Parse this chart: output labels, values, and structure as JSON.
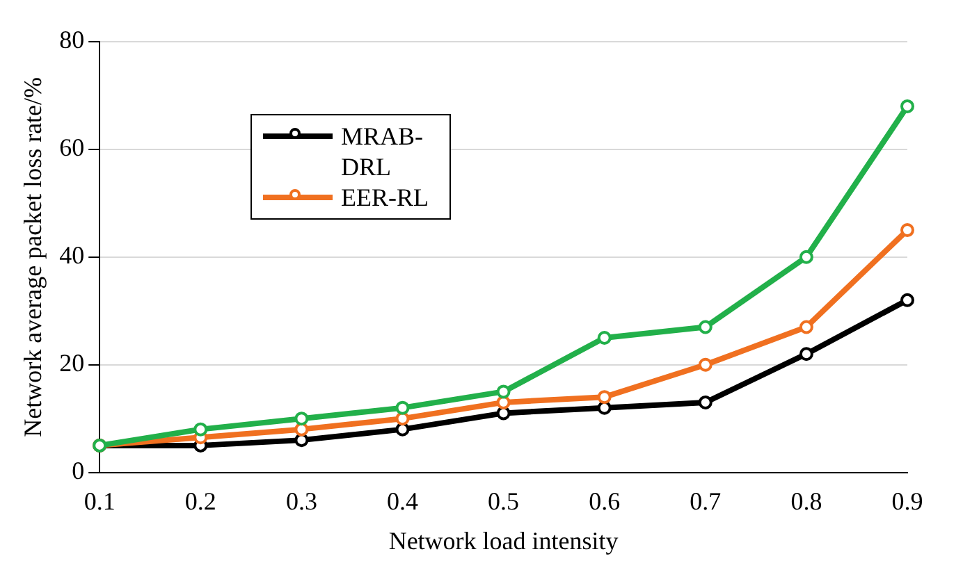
{
  "chart_data": {
    "type": "line",
    "xlabel": "Network load intensity",
    "ylabel": "Network average packet loss rate/%",
    "categories": [
      "0.1",
      "0.2",
      "0.3",
      "0.4",
      "0.5",
      "0.6",
      "0.7",
      "0.8",
      "0.9"
    ],
    "series": [
      {
        "name": "MRAB-DRL",
        "color": "#000000",
        "values": [
          5,
          5,
          6,
          8,
          11,
          12,
          13,
          22,
          32
        ]
      },
      {
        "name": "EER-RL",
        "color": "#f07020",
        "values": [
          5,
          6.5,
          8,
          10,
          13,
          14,
          20,
          27,
          45
        ]
      },
      {
        "color": "#22b04a",
        "values": [
          5,
          8,
          10,
          12,
          15,
          25,
          27,
          40,
          68
        ]
      }
    ],
    "ylim": [
      0,
      80
    ],
    "yticks": [
      0,
      20,
      40,
      60,
      80
    ],
    "grid": "y",
    "legend": "top left",
    "marker": "circle",
    "line_style": "solid"
  }
}
